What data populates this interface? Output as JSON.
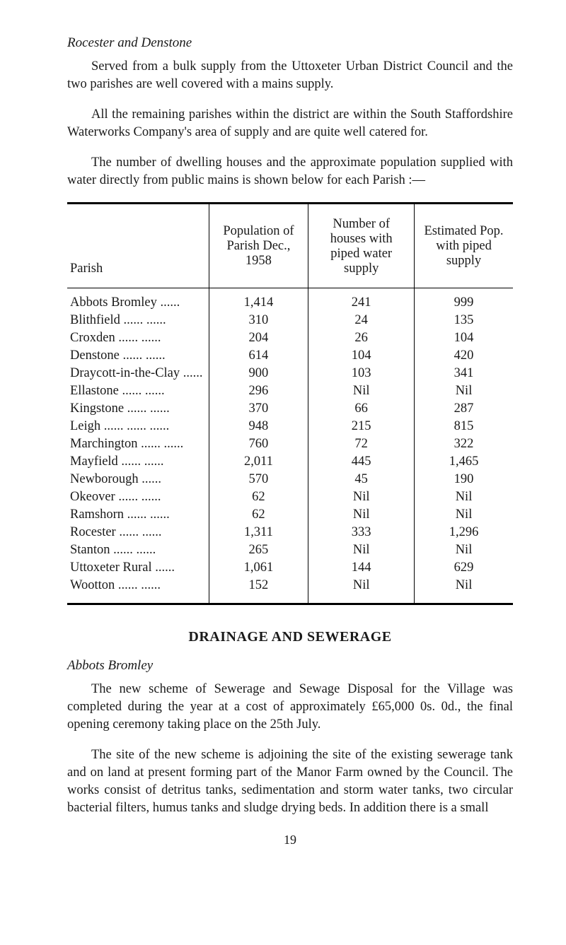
{
  "section_title": "Rocester and Denstone",
  "para1": "Served from a bulk supply from the Uttoxeter Urban District Council and the two parishes are well covered with a mains supply.",
  "para2": "All the remaining parishes within the district are within the South Staffordshire Waterworks Company's area of supply and are quite well catered for.",
  "para3": "The number of dwelling houses and the approximate popula­tion supplied with water directly from public mains is shown below for each Parish :—",
  "table": {
    "columns": [
      "Parish",
      "Population of Parish Dec., 1958",
      "Number of houses with piped water supply",
      "Estimated Pop. with piped supply"
    ],
    "rows": [
      {
        "name": "Abbots Bromley",
        "dots1": "......",
        "dots2": "",
        "pop": "1,414",
        "houses": "241",
        "est": "999"
      },
      {
        "name": "Blithfield",
        "dots1": "......",
        "dots2": "......",
        "pop": "310",
        "houses": "24",
        "est": "135"
      },
      {
        "name": "Croxden",
        "dots1": "......",
        "dots2": "......",
        "pop": "204",
        "houses": "26",
        "est": "104"
      },
      {
        "name": "Denstone",
        "dots1": "......",
        "dots2": "......",
        "pop": "614",
        "houses": "104",
        "est": "420"
      },
      {
        "name": "Draycott-in-the-Clay",
        "dots1": "......",
        "dots2": "",
        "pop": "900",
        "houses": "103",
        "est": "341"
      },
      {
        "name": "Ellastone",
        "dots1": "......",
        "dots2": "......",
        "pop": "296",
        "houses": "Nil",
        "est": "Nil"
      },
      {
        "name": "Kingstone",
        "dots1": "......",
        "dots2": "......",
        "pop": "370",
        "houses": "66",
        "est": "287"
      },
      {
        "name": "Leigh",
        "dots1": "......",
        "dots2": "......   ......",
        "pop": "948",
        "houses": "215",
        "est": "815"
      },
      {
        "name": "Marchington",
        "dots1": "......",
        "dots2": "......",
        "pop": "760",
        "houses": "72",
        "est": "322"
      },
      {
        "name": "Mayfield",
        "dots1": "......",
        "dots2": "......",
        "pop": "2,011",
        "houses": "445",
        "est": "1,465"
      },
      {
        "name": "Newborough",
        "dots1": "",
        "dots2": "......",
        "pop": "570",
        "houses": "45",
        "est": "190"
      },
      {
        "name": "Okeover",
        "dots1": "......",
        "dots2": "......",
        "pop": "62",
        "houses": "Nil",
        "est": "Nil"
      },
      {
        "name": "Ramshorn",
        "dots1": "......",
        "dots2": "......",
        "pop": "62",
        "houses": "Nil",
        "est": "Nil"
      },
      {
        "name": "Rocester",
        "dots1": "......",
        "dots2": "......",
        "pop": "1,311",
        "houses": "333",
        "est": "1,296"
      },
      {
        "name": "Stanton",
        "dots1": "......",
        "dots2": "......",
        "pop": "265",
        "houses": "Nil",
        "est": "Nil"
      },
      {
        "name": "Uttoxeter Rural",
        "dots1": "",
        "dots2": "......",
        "pop": "1,061",
        "houses": "144",
        "est": "629"
      },
      {
        "name": "Wootton",
        "dots1": "......",
        "dots2": "......",
        "pop": "152",
        "houses": "Nil",
        "est": "Nil"
      }
    ]
  },
  "heading2": "DRAINAGE AND SEWERAGE",
  "subsection_title": "Abbots Bromley",
  "para4": "The new scheme of Sewerage and Sewage Disposal for the Village was completed during the year at a cost of approximately £65,000 0s. 0d., the final opening ceremony taking place on the 25th July.",
  "para5": "The site of the new scheme is adjoining the site of the existing sewerage tank and on land at present forming part of the Manor Farm owned by the Council. The works consist of detritus tanks, sedimentation and storm water tanks, two circular bacterial filters, humus tanks and sludge drying beds. In addition there is a small",
  "page_number": "19"
}
